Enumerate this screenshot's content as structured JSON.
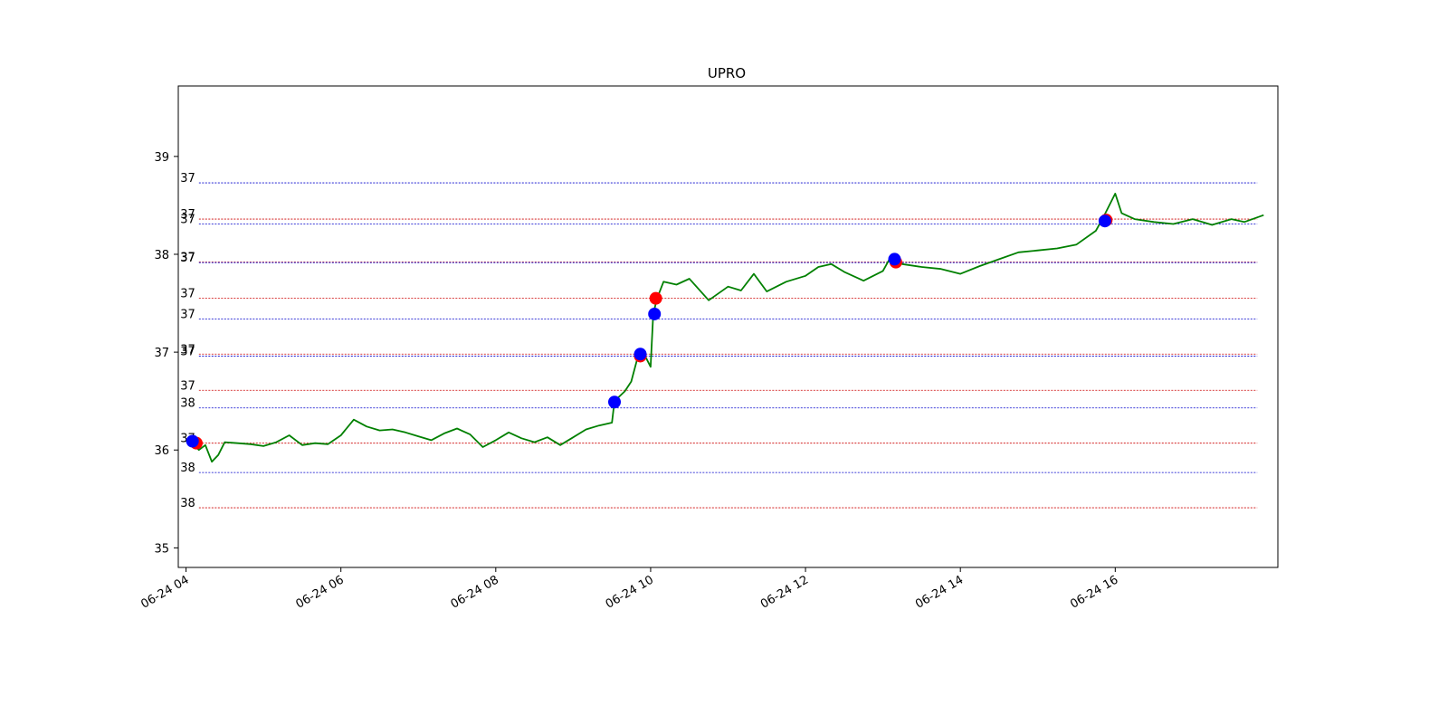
{
  "chart_data": {
    "type": "line",
    "title": "UPRO",
    "xlabel": "",
    "ylabel": "",
    "grid": false,
    "ylim": [
      34.8,
      39.72
    ],
    "xlim": [
      "06-24 03:54",
      "06-24 18:06"
    ],
    "x_ticks": [
      {
        "t": "06-24 04:00",
        "label": "06-24 04"
      },
      {
        "t": "06-24 06:00",
        "label": "06-24 06"
      },
      {
        "t": "06-24 08:00",
        "label": "06-24 08"
      },
      {
        "t": "06-24 10:00",
        "label": "06-24 10"
      },
      {
        "t": "06-24 12:00",
        "label": "06-24 12"
      },
      {
        "t": "06-24 14:00",
        "label": "06-24 14"
      },
      {
        "t": "06-24 16:00",
        "label": "06-24 16"
      }
    ],
    "y_ticks": [
      {
        "v": 35,
        "label": "35"
      },
      {
        "v": 36,
        "label": "36"
      },
      {
        "v": 37,
        "label": "37"
      },
      {
        "v": 38,
        "label": "38"
      },
      {
        "v": 39,
        "label": "39"
      }
    ],
    "series": [
      {
        "color": "#008000",
        "points": [
          [
            "06-24 04:00",
            36.09
          ],
          [
            "06-24 04:05",
            36.07
          ],
          [
            "06-24 04:10",
            36.0
          ],
          [
            "06-24 04:15",
            36.05
          ],
          [
            "06-24 04:20",
            35.88
          ],
          [
            "06-24 04:25",
            35.95
          ],
          [
            "06-24 04:30",
            36.08
          ],
          [
            "06-24 04:40",
            36.07
          ],
          [
            "06-24 04:50",
            36.06
          ],
          [
            "06-24 05:00",
            36.04
          ],
          [
            "06-24 05:10",
            36.08
          ],
          [
            "06-24 05:20",
            36.15
          ],
          [
            "06-24 05:30",
            36.05
          ],
          [
            "06-24 05:40",
            36.07
          ],
          [
            "06-24 05:50",
            36.06
          ],
          [
            "06-24 06:00",
            36.15
          ],
          [
            "06-24 06:10",
            36.31
          ],
          [
            "06-24 06:20",
            36.24
          ],
          [
            "06-24 06:30",
            36.2
          ],
          [
            "06-24 06:40",
            36.21
          ],
          [
            "06-24 06:50",
            36.18
          ],
          [
            "06-24 07:00",
            36.14
          ],
          [
            "06-24 07:10",
            36.1
          ],
          [
            "06-24 07:20",
            36.17
          ],
          [
            "06-24 07:30",
            36.22
          ],
          [
            "06-24 07:40",
            36.16
          ],
          [
            "06-24 07:50",
            36.03
          ],
          [
            "06-24 08:00",
            36.1
          ],
          [
            "06-24 08:10",
            36.18
          ],
          [
            "06-24 08:20",
            36.12
          ],
          [
            "06-24 08:30",
            36.08
          ],
          [
            "06-24 08:40",
            36.13
          ],
          [
            "06-24 08:50",
            36.05
          ],
          [
            "06-24 09:00",
            36.13
          ],
          [
            "06-24 09:10",
            36.21
          ],
          [
            "06-24 09:20",
            36.25
          ],
          [
            "06-24 09:30",
            36.28
          ],
          [
            "06-24 09:32",
            36.5
          ],
          [
            "06-24 09:40",
            36.6
          ],
          [
            "06-24 09:45",
            36.7
          ],
          [
            "06-24 09:50",
            36.95
          ],
          [
            "06-24 09:55",
            36.98
          ],
          [
            "06-24 10:00",
            36.85
          ],
          [
            "06-24 10:02",
            37.39
          ],
          [
            "06-24 10:05",
            37.55
          ],
          [
            "06-24 10:10",
            37.72
          ],
          [
            "06-24 10:20",
            37.69
          ],
          [
            "06-24 10:30",
            37.75
          ],
          [
            "06-24 10:45",
            37.53
          ],
          [
            "06-24 11:00",
            37.67
          ],
          [
            "06-24 11:10",
            37.63
          ],
          [
            "06-24 11:20",
            37.8
          ],
          [
            "06-24 11:30",
            37.62
          ],
          [
            "06-24 11:45",
            37.72
          ],
          [
            "06-24 12:00",
            37.78
          ],
          [
            "06-24 12:10",
            37.87
          ],
          [
            "06-24 12:20",
            37.9
          ],
          [
            "06-24 12:30",
            37.82
          ],
          [
            "06-24 12:45",
            37.73
          ],
          [
            "06-24 13:00",
            37.83
          ],
          [
            "06-24 13:05",
            37.95
          ],
          [
            "06-24 13:15",
            37.9
          ],
          [
            "06-24 13:30",
            37.87
          ],
          [
            "06-24 13:45",
            37.85
          ],
          [
            "06-24 14:00",
            37.8
          ],
          [
            "06-24 14:15",
            37.88
          ],
          [
            "06-24 14:30",
            37.95
          ],
          [
            "06-24 14:45",
            38.02
          ],
          [
            "06-24 15:00",
            38.04
          ],
          [
            "06-24 15:15",
            38.06
          ],
          [
            "06-24 15:30",
            38.1
          ],
          [
            "06-24 15:45",
            38.24
          ],
          [
            "06-24 15:50",
            38.36
          ],
          [
            "06-24 16:00",
            38.62
          ],
          [
            "06-24 16:05",
            38.42
          ],
          [
            "06-24 16:15",
            38.36
          ],
          [
            "06-24 16:30",
            38.33
          ],
          [
            "06-24 16:45",
            38.31
          ],
          [
            "06-24 17:00",
            38.36
          ],
          [
            "06-24 17:15",
            38.3
          ],
          [
            "06-24 17:30",
            38.36
          ],
          [
            "06-24 17:40",
            38.33
          ],
          [
            "06-24 17:55",
            38.4
          ]
        ]
      }
    ],
    "markers": {
      "red": [
        [
          "06-24 04:08",
          36.07
        ],
        [
          "06-24 09:52",
          36.96
        ],
        [
          "06-24 10:04",
          37.55
        ],
        [
          "06-24 13:10",
          37.92
        ],
        [
          "06-24 15:53",
          38.35
        ]
      ],
      "blue": [
        [
          "06-24 04:05",
          36.09
        ],
        [
          "06-24 09:32",
          36.49
        ],
        [
          "06-24 09:52",
          36.98
        ],
        [
          "06-24 10:03",
          37.39
        ],
        [
          "06-24 13:09",
          37.95
        ],
        [
          "06-24 15:52",
          38.34
        ]
      ]
    },
    "levels": [
      {
        "y": 38.73,
        "color": "#0000cc",
        "label": "37"
      },
      {
        "y": 38.36,
        "color": "#cc0000",
        "label": "37"
      },
      {
        "y": 38.31,
        "color": "#0000cc",
        "label": "37"
      },
      {
        "y": 37.92,
        "color": "#cc0000",
        "label": "37"
      },
      {
        "y": 37.915,
        "color": "#0000cc",
        "label": "37"
      },
      {
        "y": 37.55,
        "color": "#cc0000",
        "label": "37"
      },
      {
        "y": 37.34,
        "color": "#0000cc",
        "label": "37"
      },
      {
        "y": 36.98,
        "color": "#cc0000",
        "label": "37"
      },
      {
        "y": 36.96,
        "color": "#0000cc",
        "label": "37"
      },
      {
        "y": 36.61,
        "color": "#cc0000",
        "label": "37"
      },
      {
        "y": 36.43,
        "color": "#0000cc",
        "label": "38"
      },
      {
        "y": 36.07,
        "color": "#cc0000",
        "label": "37"
      },
      {
        "y": 35.77,
        "color": "#0000cc",
        "label": "38"
      },
      {
        "y": 35.41,
        "color": "#cc0000",
        "label": "38"
      }
    ],
    "levels_x_range": [
      "06-24 04:10",
      "06-24 17:50"
    ]
  }
}
